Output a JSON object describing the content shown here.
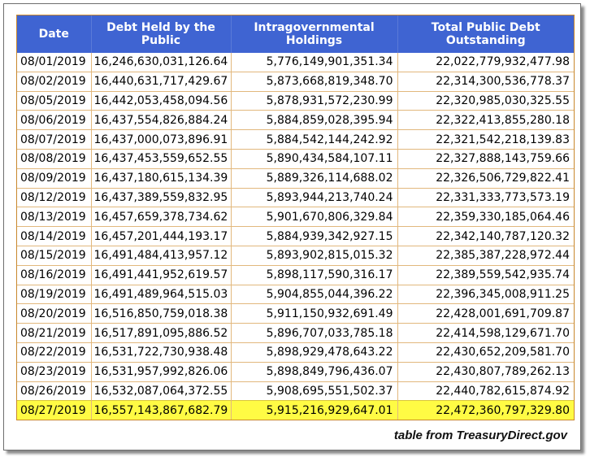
{
  "table": {
    "headers": [
      "Date",
      "Debt Held by the Public",
      "Intragovernmental Holdings",
      "Total Public Debt Outstanding"
    ],
    "rows": [
      [
        "08/01/2019",
        "16,246,630,031,126.64",
        "5,776,149,901,351.34",
        "22,022,779,932,477.98"
      ],
      [
        "08/02/2019",
        "16,440,631,717,429.67",
        "5,873,668,819,348.70",
        "22,314,300,536,778.37"
      ],
      [
        "08/05/2019",
        "16,442,053,458,094.56",
        "5,878,931,572,230.99",
        "22,320,985,030,325.55"
      ],
      [
        "08/06/2019",
        "16,437,554,826,884.24",
        "5,884,859,028,395.94",
        "22,322,413,855,280.18"
      ],
      [
        "08/07/2019",
        "16,437,000,073,896.91",
        "5,884,542,144,242.92",
        "22,321,542,218,139.83"
      ],
      [
        "08/08/2019",
        "16,437,453,559,652.55",
        "5,890,434,584,107.11",
        "22,327,888,143,759.66"
      ],
      [
        "08/09/2019",
        "16,437,180,615,134.39",
        "5,889,326,114,688.02",
        "22,326,506,729,822.41"
      ],
      [
        "08/12/2019",
        "16,437,389,559,832.95",
        "5,893,944,213,740.24",
        "22,331,333,773,573.19"
      ],
      [
        "08/13/2019",
        "16,457,659,378,734.62",
        "5,901,670,806,329.84",
        "22,359,330,185,064.46"
      ],
      [
        "08/14/2019",
        "16,457,201,444,193.17",
        "5,884,939,342,927.15",
        "22,342,140,787,120.32"
      ],
      [
        "08/15/2019",
        "16,491,484,413,957.12",
        "5,893,902,815,015.32",
        "22,385,387,228,972.44"
      ],
      [
        "08/16/2019",
        "16,491,441,952,619.57",
        "5,898,117,590,316.17",
        "22,389,559,542,935.74"
      ],
      [
        "08/19/2019",
        "16,491,489,964,515.03",
        "5,904,855,044,396.22",
        "22,396,345,008,911.25"
      ],
      [
        "08/20/2019",
        "16,516,850,759,018.38",
        "5,911,150,932,691.49",
        "22,428,001,691,709.87"
      ],
      [
        "08/21/2019",
        "16,517,891,095,886.52",
        "5,896,707,033,785.18",
        "22,414,598,129,671.70"
      ],
      [
        "08/22/2019",
        "16,531,722,730,938.48",
        "5,898,929,478,643.22",
        "22,430,652,209,581.70"
      ],
      [
        "08/23/2019",
        "16,531,957,992,826.06",
        "5,898,849,796,436.07",
        "22,430,807,789,262.13"
      ],
      [
        "08/26/2019",
        "16,532,087,064,372.55",
        "5,908,695,551,502.37",
        "22,440,782,615,874.92"
      ],
      [
        "08/27/2019",
        "16,557,143,867,682.79",
        "5,915,216,929,647.01",
        "22,472,360,797,329.80"
      ]
    ],
    "highlighted_row_index": 18,
    "colors": {
      "header_bg": "#3f64d2",
      "header_text": "#ffffff",
      "grid_line": "#e2b87d",
      "highlight_bg": "#fffb44"
    }
  },
  "caption": "table from TreasuryDirect.gov"
}
